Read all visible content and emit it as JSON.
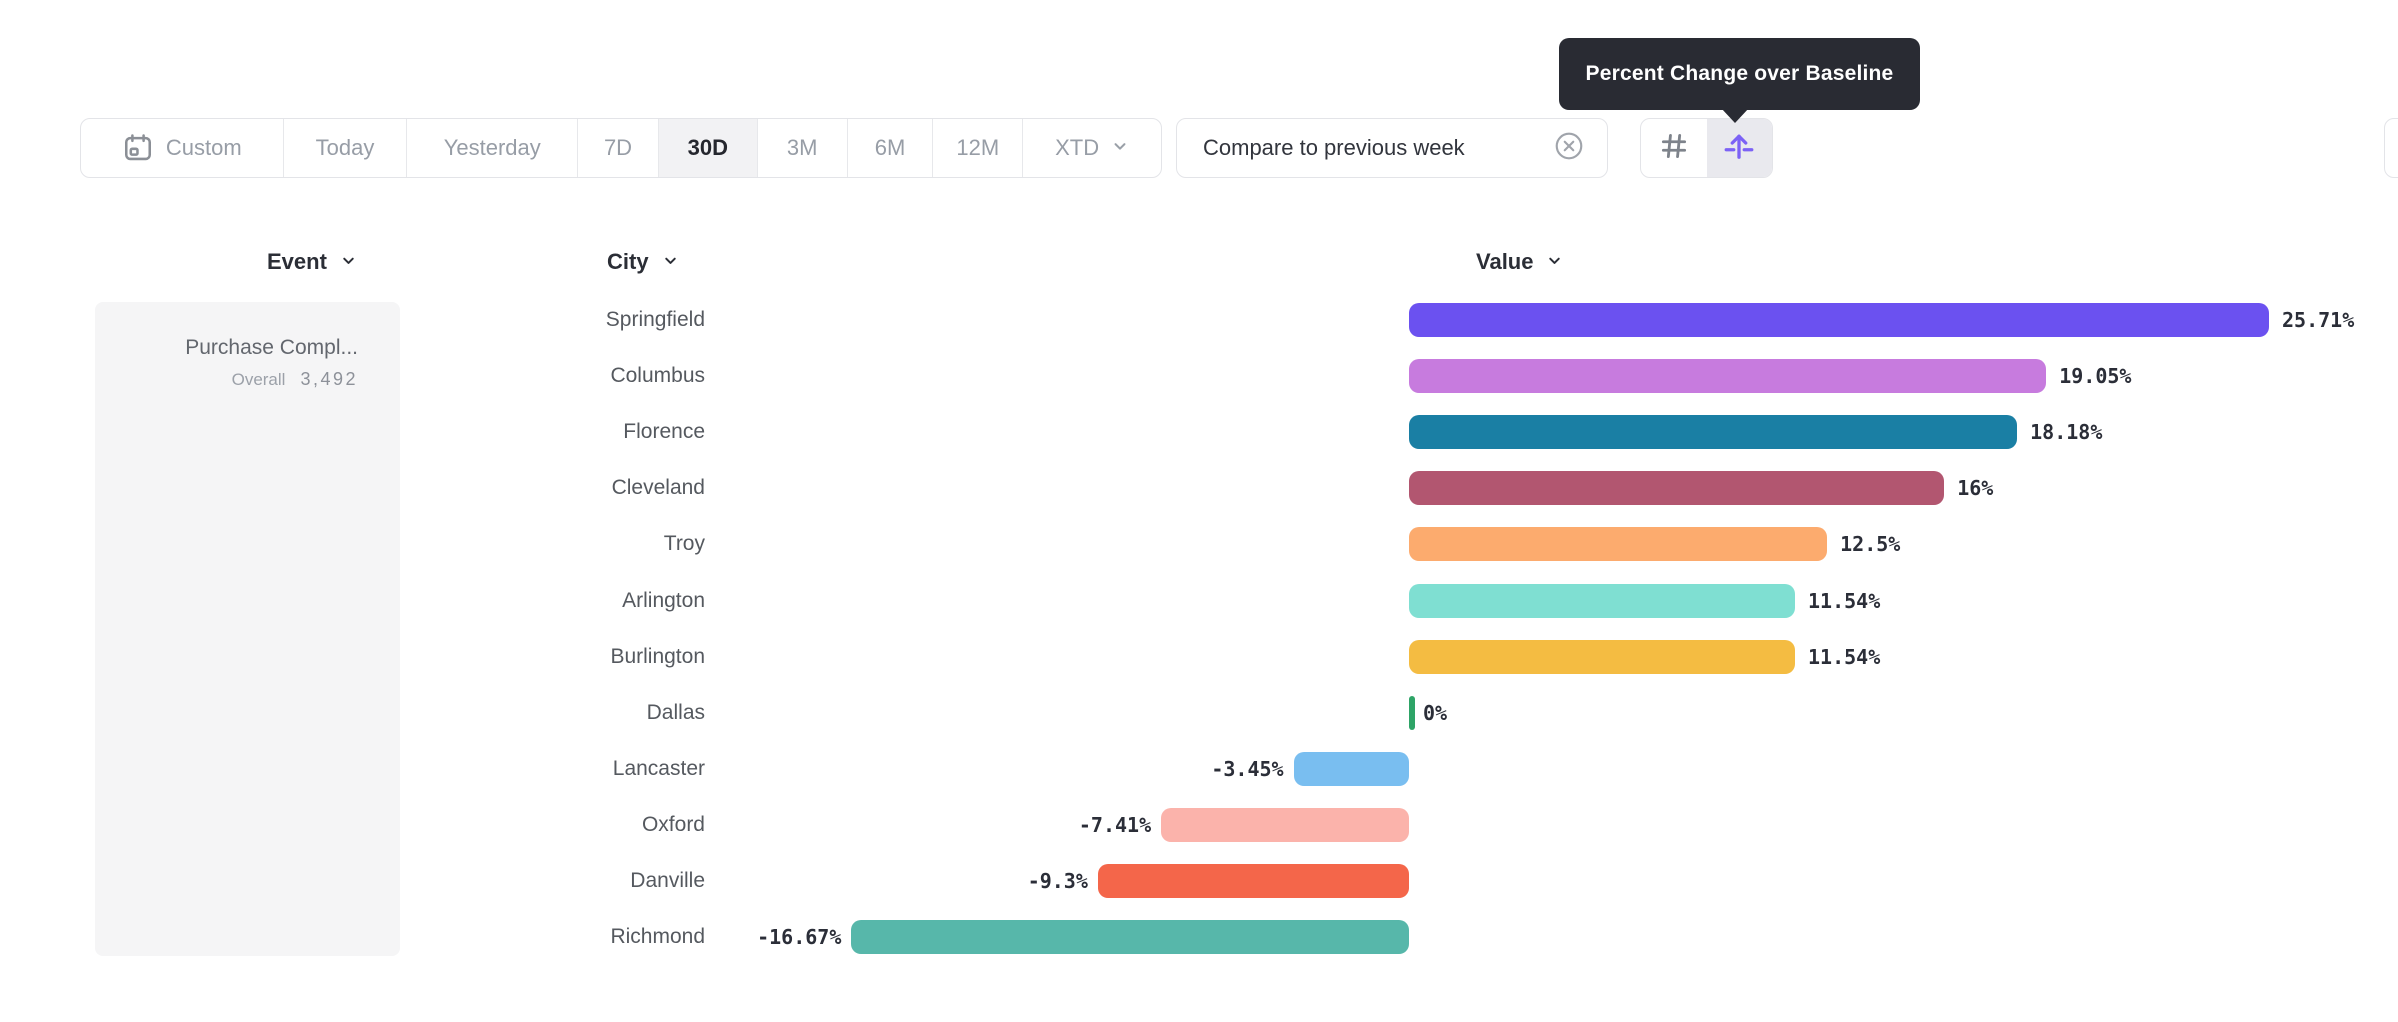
{
  "tooltip": {
    "text": "Percent Change over Baseline"
  },
  "toolbar": {
    "ranges": [
      {
        "label": "Custom",
        "selected": false
      },
      {
        "label": "Today",
        "selected": false
      },
      {
        "label": "Yesterday",
        "selected": false
      },
      {
        "label": "7D",
        "selected": false
      },
      {
        "label": "30D",
        "selected": true
      },
      {
        "label": "3M",
        "selected": false
      },
      {
        "label": "6M",
        "selected": false
      },
      {
        "label": "12M",
        "selected": false
      },
      {
        "label": "XTD",
        "selected": false
      }
    ],
    "compare_chip": {
      "label": "Compare to previous week"
    },
    "view_toggle": {
      "active": "percent-change",
      "accent_color": "#7C62F5",
      "inactive_color": "#7e838b"
    }
  },
  "columns": {
    "event": "Event",
    "city": "City",
    "value": "Value"
  },
  "event_card": {
    "name": "Purchase Compl...",
    "overall_label": "Overall",
    "overall_value": "3,492"
  },
  "chart_data": {
    "type": "bar",
    "orientation": "horizontal",
    "title": "Percent Change over Baseline",
    "xlabel": "Value",
    "ylabel": "City",
    "categories": [
      "Springfield",
      "Columbus",
      "Florence",
      "Cleveland",
      "Troy",
      "Arlington",
      "Burlington",
      "Dallas",
      "Lancaster",
      "Oxford",
      "Danville",
      "Richmond"
    ],
    "values": [
      25.71,
      19.05,
      18.18,
      16,
      12.5,
      11.54,
      11.54,
      0,
      -3.45,
      -7.41,
      -9.3,
      -16.67
    ],
    "display_labels": [
      "25.71%",
      "19.05%",
      "18.18%",
      "16%",
      "12.5%",
      "11.54%",
      "11.54%",
      "0%",
      "-3.45%",
      "-7.41%",
      "-9.3%",
      "-16.67%"
    ],
    "colors": [
      "#6B51F0",
      "#C77BDE",
      "#1A7FA4",
      "#B25670",
      "#FCAB6E",
      "#7FDFD2",
      "#F4BC42",
      "#2EA467",
      "#79BEF0",
      "#FBB3AB",
      "#F4664A",
      "#57B7AA"
    ],
    "xlim": [
      -16.67,
      25.71
    ],
    "baseline": 0,
    "grid": false,
    "legend": "none",
    "value_unit": "%"
  }
}
